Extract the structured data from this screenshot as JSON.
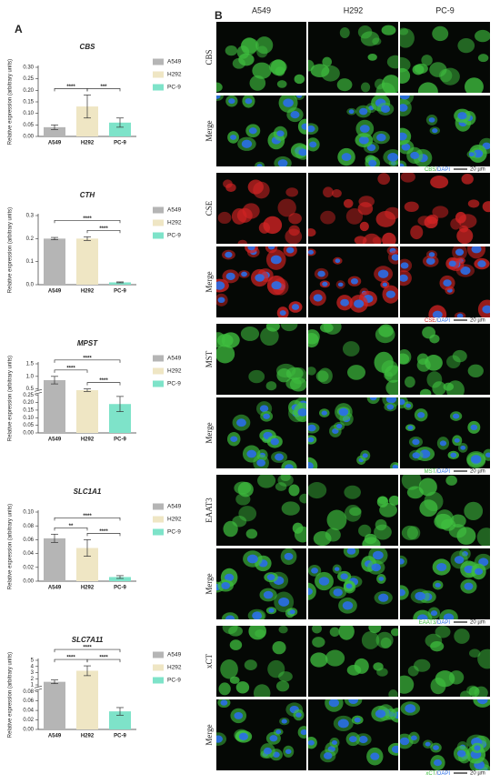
{
  "panel_labels": [
    "A",
    "B"
  ],
  "chart_data": [
    {
      "type": "bar",
      "title": "CBS",
      "ylabel": "Relative expression (arbitrary units)",
      "categories": [
        "A549",
        "H292",
        "PC-9"
      ],
      "values": [
        0.04,
        0.13,
        0.06
      ],
      "errors": [
        0.01,
        0.05,
        0.02
      ],
      "colors": [
        "#b5b5b5",
        "#efe6c4",
        "#7ee3c9"
      ],
      "ylim": [
        0,
        0.3
      ],
      "yticks": [
        {
          "value": 0,
          "label": "0.00"
        },
        0.05,
        {
          "value": 0.1,
          "label": "0.10"
        },
        0.15,
        {
          "value": 0.2,
          "label": "0.20"
        },
        0.25,
        {
          "value": 0.3,
          "label": "0.30"
        }
      ],
      "legend": "right",
      "annotations": [
        {
          "text": "****",
          "pair": [
            "A549",
            "H292"
          ]
        },
        {
          "text": "***",
          "pair": [
            "H292",
            "PC-9"
          ]
        }
      ]
    },
    {
      "type": "bar",
      "title": "CTH",
      "ylabel": "Relative expression (arbitrary units)",
      "categories": [
        "A549",
        "H292",
        "PC-9"
      ],
      "values": [
        0.2,
        0.2,
        0.01
      ],
      "errors": [
        0.005,
        0.008,
        0.002
      ],
      "colors": [
        "#b5b5b5",
        "#efe6c4",
        "#7ee3c9"
      ],
      "ylim": [
        0,
        0.3
      ],
      "yticks": [
        {
          "value": 0,
          "label": "0.0"
        },
        0.1,
        0.2,
        0.3
      ],
      "legend": "right",
      "annotations": [
        {
          "text": "****",
          "pair": [
            "H292",
            "PC-9"
          ]
        },
        {
          "text": "****",
          "pair": [
            "A549",
            "PC-9"
          ]
        }
      ]
    },
    {
      "type": "bar",
      "title": "MPST",
      "ylabel": "Relative expression (arbitrary units)",
      "categories": [
        "A549",
        "H292",
        "PC-9"
      ],
      "values": [
        0.85,
        0.45,
        0.19
      ],
      "errors": [
        0.15,
        0.05,
        0.05
      ],
      "colors": [
        "#b5b5b5",
        "#efe6c4",
        "#7ee3c9"
      ],
      "ylim": [
        0,
        1.5
      ],
      "ybreak": [
        0.25,
        0.4
      ],
      "yticks": [
        {
          "value": 0,
          "label": "0.00"
        },
        0.05,
        {
          "value": 0.1,
          "label": "0.10"
        },
        0.15,
        {
          "value": 0.2,
          "label": "0.20"
        },
        0.25,
        0.5,
        {
          "value": 1,
          "label": "1.0"
        },
        1.5
      ],
      "legend": "right",
      "annotations": [
        {
          "text": "****",
          "pair": [
            "A549",
            "H292"
          ]
        },
        {
          "text": "****",
          "pair": [
            "H292",
            "PC-9"
          ]
        },
        {
          "text": "****",
          "pair": [
            "A549",
            "PC-9"
          ]
        }
      ]
    },
    {
      "type": "bar",
      "title": "SLC1A1",
      "ylabel": "Relative expression (arbitrary units)",
      "categories": [
        "A549",
        "H292",
        "PC-9"
      ],
      "values": [
        0.062,
        0.048,
        0.006
      ],
      "errors": [
        0.006,
        0.012,
        0.002
      ],
      "colors": [
        "#b5b5b5",
        "#efe6c4",
        "#7ee3c9"
      ],
      "ylim": [
        0,
        0.1
      ],
      "yticks": [
        {
          "value": 0,
          "label": "0.00"
        },
        0.02,
        0.04,
        0.06,
        0.08,
        {
          "value": 0.1,
          "label": "0.10"
        }
      ],
      "legend": "right",
      "annotations": [
        {
          "text": "**",
          "pair": [
            "A549",
            "H292"
          ]
        },
        {
          "text": "****",
          "pair": [
            "H292",
            "PC-9"
          ]
        },
        {
          "text": "****",
          "pair": [
            "A549",
            "PC-9"
          ]
        }
      ]
    },
    {
      "type": "bar",
      "title": "SLC7A11",
      "ylabel": "Relative expression (arbitrary units)",
      "categories": [
        "A549",
        "H292",
        "PC-9"
      ],
      "values": [
        1.5,
        3.3,
        0.038
      ],
      "errors": [
        0.3,
        0.8,
        0.008
      ],
      "colors": [
        "#b5b5b5",
        "#efe6c4",
        "#7ee3c9"
      ],
      "ylim": [
        0,
        5
      ],
      "ybreak": [
        0.08,
        0.5
      ],
      "yticks": [
        {
          "value": 0,
          "label": "0.00"
        },
        0.02,
        0.04,
        0.06,
        0.08,
        1,
        2,
        3,
        4,
        5
      ],
      "legend": "right",
      "annotations": [
        {
          "text": "****",
          "pair": [
            "A549",
            "H292"
          ]
        },
        {
          "text": "****",
          "pair": [
            "H292",
            "PC-9"
          ]
        },
        {
          "text": "****",
          "pair": [
            "A549",
            "PC-9"
          ]
        }
      ]
    }
  ],
  "micrographs": {
    "columns": [
      "A549",
      "H292",
      "PC-9"
    ],
    "groups": [
      {
        "rows": [
          "CBS",
          "Merge"
        ],
        "color": "#3fbf3f",
        "caption": [
          "CBS",
          "/",
          "DAPI"
        ],
        "scale": "20 µm"
      },
      {
        "rows": [
          "CSE",
          "Merge"
        ],
        "color": "#d42424",
        "caption": [
          "CSE",
          "/",
          "DAPI"
        ],
        "scale": "20 µm"
      },
      {
        "rows": [
          "MST",
          "Merge"
        ],
        "color": "#3fbf3f",
        "caption": [
          "MST",
          "/",
          "DAPI"
        ],
        "scale": "20 µm"
      },
      {
        "rows": [
          "EAAT3",
          "Merge"
        ],
        "color": "#3fbf3f",
        "caption": [
          "EAAT3",
          "/",
          "DAPI"
        ],
        "scale": "20 µm"
      },
      {
        "rows": [
          "xCT",
          "Merge"
        ],
        "color": "#3fbf3f",
        "caption": [
          "xCT",
          "/",
          "DAPI"
        ],
        "scale": "20 µm"
      }
    ]
  }
}
